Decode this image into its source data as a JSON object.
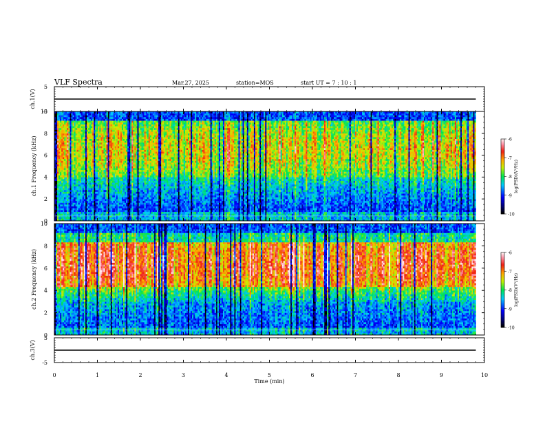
{
  "header": {
    "title": "VLF Spectra",
    "date": "Mar.27, 2025",
    "station": "station=MOS",
    "start": "start UT = 7 : 10 : 1"
  },
  "chart_data": [
    {
      "type": "line",
      "name": "ch1-waveform",
      "ylabel": "ch.1(V)",
      "ylim": [
        -5,
        5
      ],
      "y_ticks": [
        "5",
        "-5"
      ],
      "x": [
        0,
        9.8
      ],
      "y": [
        0,
        0
      ],
      "xlim": [
        0,
        10
      ]
    },
    {
      "type": "heatmap",
      "name": "ch1-spectrogram",
      "ylabel": "ch.1 Frequency (kHz)",
      "ylim": [
        0,
        10
      ],
      "y_ticks": [
        "0",
        "2",
        "4",
        "6",
        "8",
        "10"
      ],
      "xlim": [
        0,
        10
      ],
      "data_x_range": [
        0,
        9.8
      ],
      "dominant_band_khz": [
        4,
        10
      ],
      "colorbar": {
        "label": "log(PSD)(V²/Hz)",
        "range": [
          -10,
          -6
        ],
        "ticks": [
          "-6",
          "-7",
          "-8",
          "-9",
          "-10"
        ]
      }
    },
    {
      "type": "heatmap",
      "name": "ch2-spectrogram",
      "ylabel": "ch.2 Frequency (kHz)",
      "ylim": [
        0,
        10
      ],
      "y_ticks": [
        "0",
        "2",
        "4",
        "6",
        "8",
        "10"
      ],
      "xlim": [
        0,
        10
      ],
      "data_x_range": [
        0,
        9.8
      ],
      "dominant_band_khz": [
        4,
        8.5
      ],
      "colorbar": {
        "label": "log(PSD)(V²/Hz)",
        "range": [
          -10,
          -6
        ],
        "ticks": [
          "-6",
          "-7",
          "-8",
          "-9",
          "-10"
        ]
      }
    },
    {
      "type": "line",
      "name": "ch3-waveform",
      "ylabel": "ch.3(V)",
      "ylim": [
        -5,
        5
      ],
      "y_ticks": [
        "5",
        "-5"
      ],
      "x": [
        0,
        9.8
      ],
      "y": [
        0,
        0
      ],
      "xlim": [
        0,
        10
      ],
      "xlabel": "Time (min)",
      "x_ticks": [
        "0",
        "1",
        "2",
        "3",
        "4",
        "5",
        "6",
        "7",
        "8",
        "9",
        "10"
      ]
    }
  ]
}
